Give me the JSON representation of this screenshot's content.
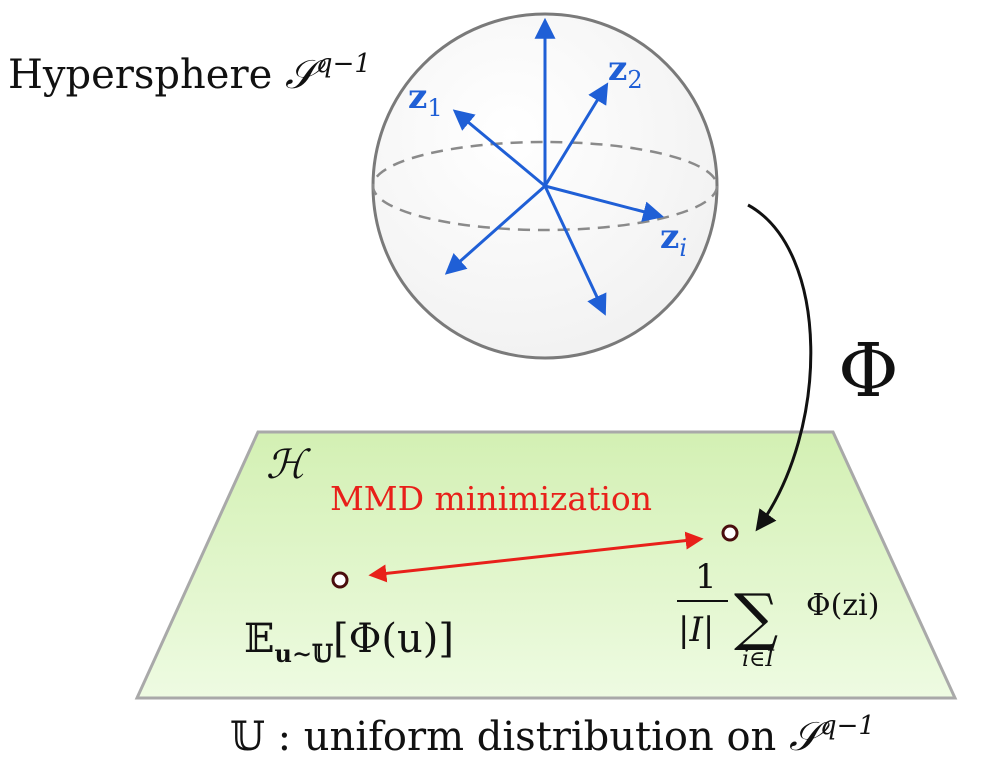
{
  "sphere": {
    "title_text": "Hypersphere ",
    "title_symbol": "𝒮",
    "title_superscript": "q−1",
    "vectors": [
      {
        "name": "z1",
        "base": "z",
        "sub": "1"
      },
      {
        "name": "z2",
        "base": "z",
        "sub": "2"
      },
      {
        "name": "zi",
        "base": "z",
        "sub": "i"
      }
    ]
  },
  "mapping": {
    "symbol": "Φ"
  },
  "plane": {
    "label": "ℋ",
    "mmd_label": "MMD minimization",
    "expectation": {
      "operator": "𝔼",
      "subscript": "u∼𝕌",
      "argument": "[Φ(u)]"
    },
    "empirical": {
      "numerator": "1",
      "denominator": "|I|",
      "sum_symbol": "∑",
      "sum_subscript": "i∈I",
      "term": "Φ(zi)"
    }
  },
  "caption": {
    "symbol": "𝕌",
    "text": " : uniform distribution on ",
    "space": "𝒮",
    "superscript": "q−1"
  },
  "colors": {
    "vector_blue": "#1f5fd6",
    "mmd_red": "#e8201a",
    "plane_green": "#dff5c4",
    "sphere_gray": "#7a7a7a"
  }
}
